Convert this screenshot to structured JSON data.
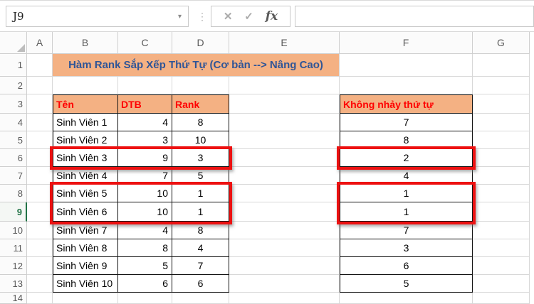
{
  "app": {
    "name_box": "J9",
    "formula": ""
  },
  "toolbar_icons": {
    "dropdown": "▾",
    "handle": "⋮",
    "cancel": "✕",
    "enter": "✓",
    "fx": "fx"
  },
  "colors": {
    "accent_fill": "#F4B183",
    "title_text": "#2F5597",
    "header_text": "#FF0000",
    "highlight_border": "#ED1111",
    "selected_row_accent": "#217346"
  },
  "sheet": {
    "column_headers": [
      "A",
      "B",
      "C",
      "D",
      "E",
      "F",
      "G"
    ],
    "row_headers": [
      "1",
      "2",
      "3",
      "4",
      "5",
      "6",
      "7",
      "8",
      "9",
      "10",
      "11",
      "12",
      "13",
      "14"
    ],
    "selected_row": "9",
    "title": "Hàm Rank Sắp Xếp Thứ Tự (Cơ bản --> Nâng Cao)",
    "rank_table": {
      "headers": [
        "Tên",
        "DTB",
        "Rank"
      ],
      "rows": [
        [
          "Sinh Viên 1",
          "4",
          "8"
        ],
        [
          "Sinh Viên 2",
          "3",
          "10"
        ],
        [
          "Sinh Viên 3",
          "9",
          "3"
        ],
        [
          "Sinh Viên 4",
          "7",
          "5"
        ],
        [
          "Sinh Viên 5",
          "10",
          "1"
        ],
        [
          "Sinh Viên 6",
          "10",
          "1"
        ],
        [
          "Sinh Viên 7",
          "4",
          "8"
        ],
        [
          "Sinh Viên 8",
          "8",
          "4"
        ],
        [
          "Sinh Viên 9",
          "5",
          "7"
        ],
        [
          "Sinh Viên 10",
          "6",
          "6"
        ]
      ]
    },
    "dense_rank_column": {
      "header": "Không nhảy thứ tự",
      "values": [
        "7",
        "8",
        "2",
        "4",
        "1",
        "1",
        "7",
        "3",
        "6",
        "5"
      ]
    },
    "highlighted_ranges": [
      "B6:D6",
      "B8:D9",
      "F6:F6",
      "F8:F9"
    ]
  }
}
